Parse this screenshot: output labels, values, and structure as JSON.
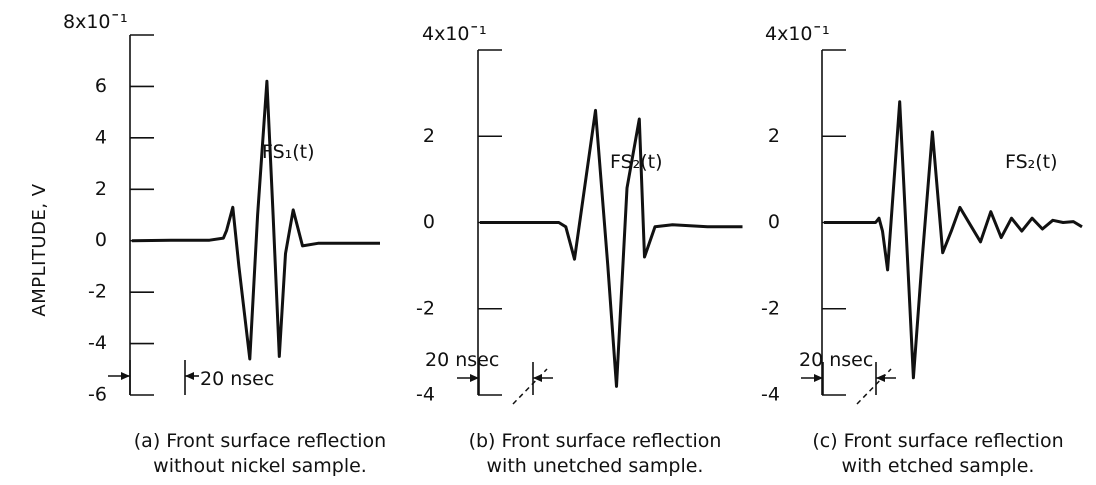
{
  "ylabel": "AMPLITUDE, V",
  "chart_data": [
    {
      "type": "line",
      "scale_label": "8x10¯¹",
      "ylim": [
        -6,
        8
      ],
      "yticks": [
        "6",
        "4",
        "2",
        "0",
        "-2",
        "-4",
        "-6"
      ],
      "ytick_values": [
        6,
        4,
        2,
        0,
        -2,
        -4,
        -6
      ],
      "signal_label": "FS₁(t)",
      "time_marker": "20 nsec",
      "x_unit_ns": 20,
      "caption": [
        "(a) Front surface reflection",
        "without nickel sample."
      ],
      "series": [
        {
          "x": [
            0,
            25,
            50,
            59,
            61,
            65,
            69,
            76,
            81,
            87,
            91,
            95,
            99,
            104,
            110,
            120,
            140,
            160
          ],
          "y": [
            0,
            0.02,
            0.02,
            0.1,
            0.4,
            1.3,
            -1.0,
            -4.6,
            1.0,
            6.2,
            1.0,
            -4.5,
            -0.5,
            1.2,
            -0.2,
            -0.1,
            -0.1,
            -0.1
          ]
        }
      ]
    },
    {
      "type": "line",
      "scale_label": "4x10¯¹",
      "ylim": [
        -4,
        4
      ],
      "yticks": [
        "2",
        "0",
        "-2",
        "-4"
      ],
      "ytick_values": [
        2,
        0,
        -2,
        -4
      ],
      "signal_label": "FS₂(t)",
      "time_marker": "20 nsec",
      "x_unit_ns": 20,
      "caption": [
        "(b) Front surface reflection",
        "with unetched sample."
      ],
      "series": [
        {
          "x": [
            0,
            20,
            45,
            49,
            54,
            66,
            73,
            78,
            84,
            91,
            94,
            100,
            110,
            130,
            150
          ],
          "y": [
            0,
            0,
            0,
            -0.1,
            -0.85,
            2.6,
            -1.0,
            -3.8,
            0.8,
            2.4,
            -0.8,
            -0.1,
            -0.05,
            -0.1,
            -0.1
          ]
        }
      ]
    },
    {
      "type": "line",
      "scale_label": "4x10¯¹",
      "ylim": [
        -4,
        4
      ],
      "yticks": [
        "2",
        "0",
        "-2",
        "-4"
      ],
      "ytick_values": [
        2,
        0,
        -2,
        -4
      ],
      "signal_label": "FS₂(t)",
      "time_marker": "20 nsec",
      "x_unit_ns": 20,
      "caption": [
        "(c) Front surface reflection",
        "with etched sample."
      ],
      "series": [
        {
          "x": [
            0,
            25,
            30,
            32,
            34,
            37,
            44,
            52,
            57,
            63,
            69,
            74,
            79,
            85,
            91,
            97,
            103,
            109,
            115,
            121,
            127,
            133,
            139,
            145,
            150
          ],
          "y": [
            0,
            0,
            0,
            0.1,
            -0.2,
            -1.1,
            2.8,
            -3.6,
            -0.9,
            2.1,
            -0.7,
            -0.2,
            0.35,
            -0.05,
            -0.45,
            0.25,
            -0.35,
            0.1,
            -0.2,
            0.1,
            -0.15,
            0.05,
            0.0,
            0.02,
            -0.1
          ]
        }
      ]
    }
  ]
}
